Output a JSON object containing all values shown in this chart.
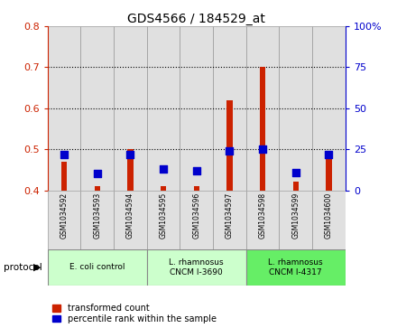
{
  "title": "GDS4566 / 184529_at",
  "samples": [
    "GSM1034592",
    "GSM1034593",
    "GSM1034594",
    "GSM1034595",
    "GSM1034596",
    "GSM1034597",
    "GSM1034598",
    "GSM1034599",
    "GSM1034600"
  ],
  "transformed_count": [
    0.47,
    0.41,
    0.5,
    0.41,
    0.41,
    0.62,
    0.7,
    0.42,
    0.49
  ],
  "percentile_rank": [
    22,
    10,
    22,
    13,
    12,
    24,
    25,
    11,
    22
  ],
  "ylim_left": [
    0.4,
    0.8
  ],
  "ylim_right": [
    0,
    100
  ],
  "yticks_left": [
    0.4,
    0.5,
    0.6,
    0.7,
    0.8
  ],
  "yticks_right": [
    0,
    25,
    50,
    75,
    100
  ],
  "ytick_labels_right": [
    "0",
    "25",
    "50",
    "75",
    "100%"
  ],
  "left_axis_color": "#cc2200",
  "right_axis_color": "#0000cc",
  "bar_color_red": "#cc2200",
  "marker_color_blue": "#0000cc",
  "groups": [
    {
      "label": "E. coli control",
      "start": 0,
      "end": 3,
      "color": "#ccffcc"
    },
    {
      "label": "L. rhamnosus\nCNCM I-3690",
      "start": 3,
      "end": 6,
      "color": "#ccffcc"
    },
    {
      "label": "L. rhamnosus\nCNCM I-4317",
      "start": 6,
      "end": 9,
      "color": "#66ee66"
    }
  ],
  "protocol_label": "protocol",
  "legend_items": [
    {
      "label": "transformed count",
      "color": "#cc2200"
    },
    {
      "label": "percentile rank within the sample",
      "color": "#0000cc"
    }
  ],
  "cell_bg_color": "#e0e0e0",
  "plot_bg_color": "#ffffff",
  "grid_line_color": "#000000"
}
